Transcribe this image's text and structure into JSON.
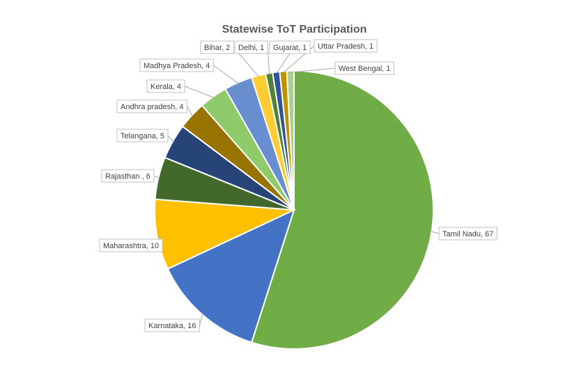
{
  "chart_data": {
    "type": "pie",
    "title": "Statewise ToT Participation",
    "slices": [
      {
        "label": "Tamil Nadu",
        "value": 67,
        "display": "Tamil Nadu, 67",
        "color": "#70ad47"
      },
      {
        "label": "Karnataka",
        "value": 16,
        "display": "Karnataka, 16",
        "color": "#4472c4"
      },
      {
        "label": "Maharashtra",
        "value": 10,
        "display": "Maharashtra, 10",
        "color": "#ffc000"
      },
      {
        "label": "Rajasthan",
        "value": 6,
        "display": "Rajasthan , 6",
        "color": "#43682b"
      },
      {
        "label": "Telangana",
        "value": 5,
        "display": "Telangana, 5",
        "color": "#264478"
      },
      {
        "label": "Andhra pradesh",
        "value": 4,
        "display": "Andhra pradesh, 4",
        "color": "#997300"
      },
      {
        "label": "Kerala",
        "value": 4,
        "display": "Kerala, 4",
        "color": "#8fca6b"
      },
      {
        "label": "Madhya Pradesh",
        "value": 4,
        "display": "Madhya Pradesh, 4",
        "color": "#698ed0"
      },
      {
        "label": "Bihar",
        "value": 2,
        "display": "Bihar, 2",
        "color": "#ffcd33"
      },
      {
        "label": "Delhi",
        "value": 1,
        "display": "Delhi, 1",
        "color": "#548235"
      },
      {
        "label": "Gujarat",
        "value": 1,
        "display": "Gujarat, 1",
        "color": "#2f5597"
      },
      {
        "label": "Uttar Pradesh",
        "value": 1,
        "display": "Uttar Pradesh, 1",
        "color": "#bf9000"
      },
      {
        "label": "West Bengal",
        "value": 1,
        "display": "West Bengal, 1",
        "color": "#a9d18e"
      }
    ],
    "start": "top",
    "direction": "clockwise",
    "legend": "none",
    "data_labels": "outside-with-leader-lines"
  }
}
